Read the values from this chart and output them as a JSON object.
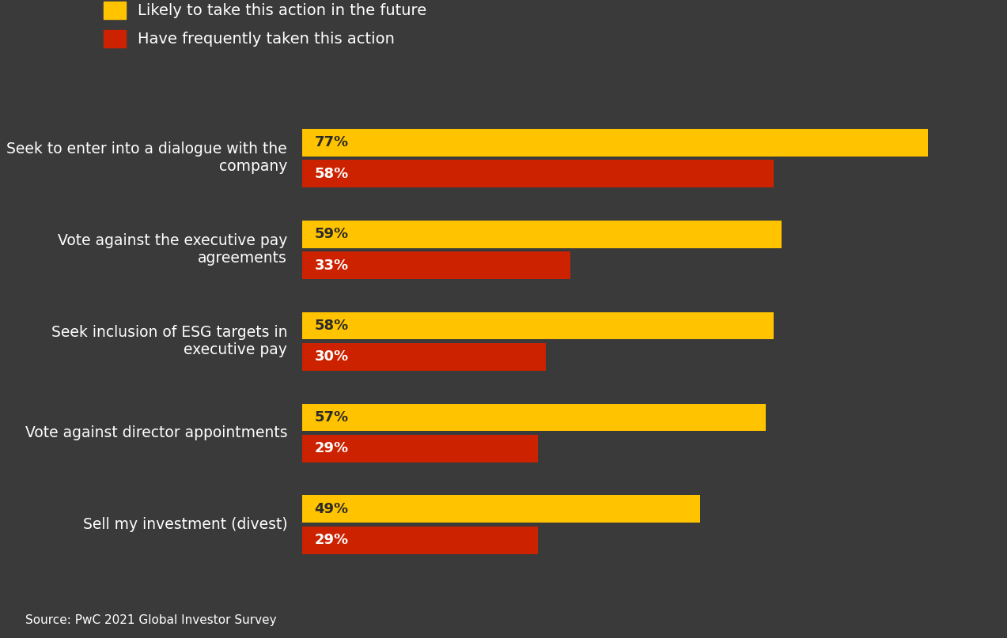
{
  "background_color": "#3a3a3a",
  "categories": [
    "Seek to enter into a dialogue with the\ncompany",
    "Vote against the executive pay\nagreements",
    "Seek inclusion of ESG targets in\nexecutive pay",
    "Vote against director appointments",
    "Sell my investment (divest)"
  ],
  "likely_values": [
    77,
    59,
    58,
    57,
    49
  ],
  "frequent_values": [
    58,
    33,
    30,
    29,
    29
  ],
  "likely_color": "#FFC300",
  "frequent_color": "#CC2200",
  "likely_label": "Likely to take this action in the future",
  "frequent_label": "Have frequently taken this action",
  "text_color": "#ffffff",
  "label_fontsize": 13.5,
  "bar_label_fontsize": 13,
  "legend_fontsize": 14,
  "source_text": "Source: PwC 2021 Global Investor Survey",
  "source_fontsize": 11,
  "xlim": [
    0,
    83
  ],
  "bar_height": 0.3,
  "bar_gap": 0.04
}
